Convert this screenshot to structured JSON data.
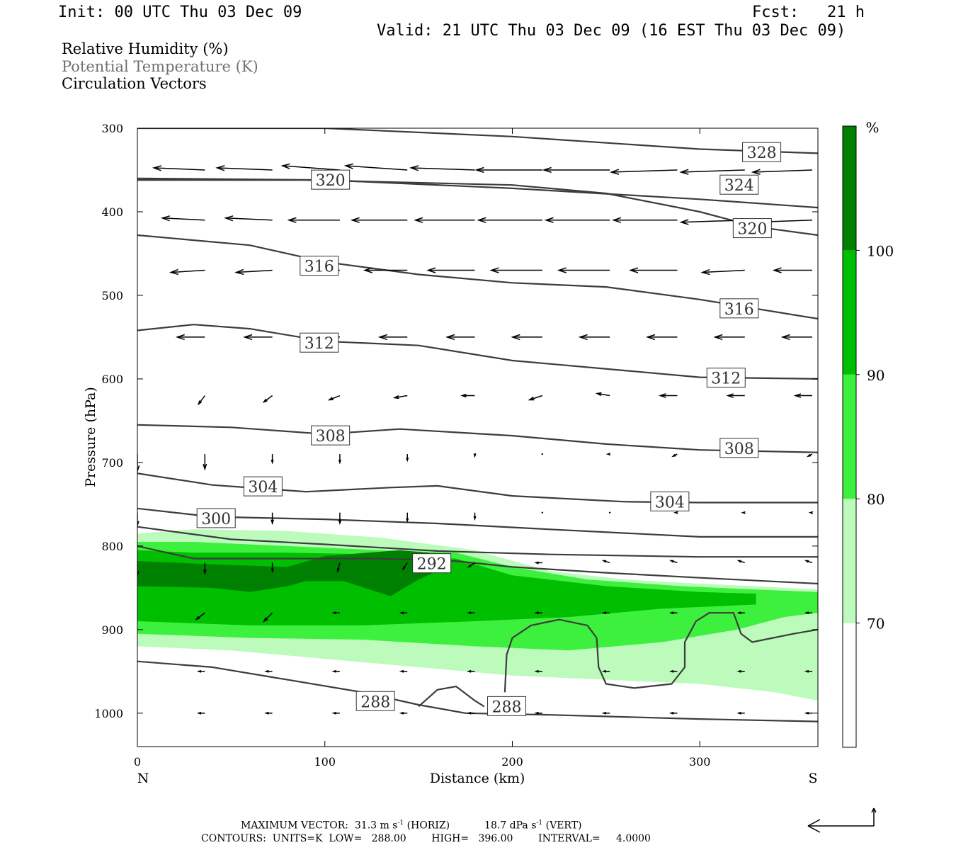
{
  "header": {
    "init": "Init: 00 UTC Thu 03 Dec 09",
    "fcst": "Fcst:   21 h",
    "valid": "Valid: 21 UTC Thu 03 Dec 09 (16 EST Thu 03 Dec 09)"
  },
  "fields": {
    "rh": "Relative Humidity (%)",
    "theta": "Potential Temperature (K)",
    "vectors": "Circulation Vectors"
  },
  "footer": {
    "max_vector_prefix": "MAXIMUM VECTOR:  31.3 m s",
    "max_vector_horiz": "(HORIZ)",
    "max_vector_vert_value": "18.7 dPa s",
    "max_vector_vert": "(VERT)",
    "sup": "-1",
    "contours": "CONTOURS:  UNITS=K  LOW=   288.00        HIGH=   396.00        INTERVAL=     4.0000"
  },
  "colors": {
    "rh_70_80": "#bcfbbc",
    "rh_80_90": "#3ef03e",
    "rh_90_100": "#00be00",
    "rh_100": "#008000",
    "contour": "#3c3c3c",
    "vector": "#000000"
  },
  "chart_data": {
    "type": "cross-section",
    "xlabel": "Distance (km)",
    "ylabel": "Pressure (hPa)",
    "xlim": [
      0,
      363
    ],
    "ylim": [
      1040,
      300
    ],
    "y_scale": "linear",
    "x_ticks": [
      0,
      100,
      200,
      300
    ],
    "y_ticks": [
      300,
      400,
      500,
      600,
      700,
      800,
      900,
      1000
    ],
    "x_end_labels": {
      "left": "N",
      "right": "S"
    },
    "colorbar": {
      "unit": "%",
      "levels": [
        70,
        80,
        90,
        100
      ],
      "colors": [
        "#ffffff",
        "#bcfbbc",
        "#3ef03e",
        "#00be00",
        "#008000"
      ]
    },
    "rh_bands": [
      {
        "level": "70-80",
        "color": "#bcfbbc",
        "top": [
          [
            0,
            785
          ],
          [
            30,
            780
          ],
          [
            80,
            782
          ],
          [
            130,
            790
          ],
          [
            180,
            805
          ],
          [
            220,
            830
          ],
          [
            260,
            840
          ],
          [
            300,
            845
          ],
          [
            330,
            848
          ],
          [
            363,
            852
          ]
        ],
        "bottom": [
          [
            0,
            920
          ],
          [
            50,
            925
          ],
          [
            100,
            935
          ],
          [
            150,
            945
          ],
          [
            200,
            955
          ],
          [
            250,
            960
          ],
          [
            300,
            965
          ],
          [
            340,
            975
          ],
          [
            363,
            985
          ]
        ]
      },
      {
        "level": "80-90",
        "color": "#3ef03e",
        "top": [
          [
            0,
            795
          ],
          [
            30,
            795
          ],
          [
            80,
            800
          ],
          [
            130,
            805
          ],
          [
            170,
            808
          ],
          [
            200,
            825
          ],
          [
            240,
            840
          ],
          [
            290,
            848
          ],
          [
            330,
            852
          ],
          [
            363,
            855
          ]
        ],
        "bottom": [
          [
            0,
            905
          ],
          [
            60,
            910
          ],
          [
            120,
            912
          ],
          [
            180,
            920
          ],
          [
            230,
            925
          ],
          [
            280,
            915
          ],
          [
            320,
            900
          ],
          [
            345,
            885
          ],
          [
            363,
            880
          ]
        ]
      },
      {
        "level": "90-100",
        "color": "#00be00",
        "top": [
          [
            0,
            805
          ],
          [
            30,
            808
          ],
          [
            80,
            808
          ],
          [
            130,
            810
          ],
          [
            170,
            815
          ],
          [
            200,
            835
          ],
          [
            250,
            848
          ],
          [
            300,
            855
          ],
          [
            330,
            857
          ]
        ],
        "bottom": [
          [
            0,
            890
          ],
          [
            60,
            895
          ],
          [
            120,
            895
          ],
          [
            180,
            890
          ],
          [
            230,
            885
          ],
          [
            280,
            875
          ],
          [
            310,
            872
          ],
          [
            330,
            870
          ]
        ]
      },
      {
        "level": ">100",
        "color": "#008000",
        "top": [
          [
            0,
            818
          ],
          [
            40,
            822
          ],
          [
            80,
            825
          ],
          [
            100,
            812
          ],
          [
            140,
            805
          ],
          [
            155,
            808
          ],
          [
            165,
            820
          ]
        ],
        "bottom": [
          [
            0,
            848
          ],
          [
            40,
            850
          ],
          [
            60,
            855
          ],
          [
            80,
            848
          ],
          [
            90,
            842
          ],
          [
            110,
            842
          ],
          [
            135,
            860
          ],
          [
            150,
            840
          ],
          [
            165,
            825
          ]
        ]
      }
    ],
    "contour_labels": [
      {
        "value": "328",
        "x": 333,
        "p": 329
      },
      {
        "value": "324",
        "x": 321,
        "p": 368
      },
      {
        "value": "320",
        "x": 103,
        "p": 362
      },
      {
        "value": "320",
        "x": 328,
        "p": 420
      },
      {
        "value": "316",
        "x": 97,
        "p": 465
      },
      {
        "value": "316",
        "x": 321,
        "p": 516
      },
      {
        "value": "312",
        "x": 97,
        "p": 557
      },
      {
        "value": "312",
        "x": 314,
        "p": 599
      },
      {
        "value": "308",
        "x": 103,
        "p": 668
      },
      {
        "value": "308",
        "x": 321,
        "p": 683
      },
      {
        "value": "304",
        "x": 67,
        "p": 729
      },
      {
        "value": "304",
        "x": 284,
        "p": 747
      },
      {
        "value": "300",
        "x": 42,
        "p": 767
      },
      {
        "value": "292",
        "x": 157,
        "p": 821
      },
      {
        "value": "288",
        "x": 127,
        "p": 986
      },
      {
        "value": "288",
        "x": 197,
        "p": 992
      }
    ],
    "theta_contours": [
      {
        "value": 328,
        "points": [
          [
            0,
            300
          ],
          [
            100,
            300
          ],
          [
            200,
            310
          ],
          [
            300,
            325
          ],
          [
            363,
            330
          ]
        ]
      },
      {
        "value": 324,
        "points": [
          [
            0,
            360
          ],
          [
            100,
            362
          ],
          [
            200,
            372
          ],
          [
            300,
            385
          ],
          [
            363,
            395
          ]
        ]
      },
      {
        "value": 320,
        "points": [
          [
            0,
            362
          ],
          [
            90,
            362
          ],
          [
            200,
            368
          ],
          [
            250,
            378
          ],
          [
            300,
            400
          ],
          [
            330,
            418
          ],
          [
            363,
            428
          ]
        ]
      },
      {
        "value": 316,
        "points": [
          [
            0,
            428
          ],
          [
            60,
            440
          ],
          [
            100,
            460
          ],
          [
            150,
            475
          ],
          [
            200,
            485
          ],
          [
            250,
            490
          ],
          [
            300,
            505
          ],
          [
            363,
            528
          ]
        ]
      },
      {
        "value": 312,
        "points": [
          [
            0,
            542
          ],
          [
            30,
            535
          ],
          [
            60,
            540
          ],
          [
            100,
            555
          ],
          [
            150,
            560
          ],
          [
            200,
            578
          ],
          [
            260,
            590
          ],
          [
            300,
            598
          ],
          [
            363,
            600
          ]
        ]
      },
      {
        "value": 308,
        "points": [
          [
            0,
            655
          ],
          [
            50,
            658
          ],
          [
            100,
            666
          ],
          [
            140,
            660
          ],
          [
            200,
            668
          ],
          [
            250,
            678
          ],
          [
            300,
            685
          ],
          [
            363,
            688
          ]
        ]
      },
      {
        "value": 304,
        "points": [
          [
            0,
            713
          ],
          [
            40,
            727
          ],
          [
            90,
            735
          ],
          [
            135,
            730
          ],
          [
            160,
            728
          ],
          [
            200,
            740
          ],
          [
            260,
            747
          ],
          [
            300,
            748
          ],
          [
            363,
            748
          ]
        ]
      },
      {
        "value": 300,
        "points": [
          [
            0,
            755
          ],
          [
            40,
            765
          ],
          [
            100,
            768
          ],
          [
            160,
            773
          ],
          [
            220,
            780
          ],
          [
            300,
            789
          ],
          [
            363,
            789
          ]
        ]
      },
      {
        "value": 296,
        "points": [
          [
            0,
            777
          ],
          [
            50,
            792
          ],
          [
            100,
            798
          ],
          [
            160,
            806
          ],
          [
            220,
            810
          ],
          [
            300,
            813
          ],
          [
            363,
            813
          ]
        ]
      },
      {
        "value": 292,
        "points": [
          [
            0,
            800
          ],
          [
            30,
            815
          ],
          [
            80,
            815
          ],
          [
            130,
            815
          ],
          [
            170,
            818
          ],
          [
            200,
            825
          ],
          [
            250,
            832
          ],
          [
            300,
            838
          ],
          [
            363,
            845
          ]
        ]
      },
      {
        "value": 288,
        "points": [
          [
            0,
            938
          ],
          [
            40,
            945
          ],
          [
            80,
            960
          ],
          [
            120,
            975
          ],
          [
            150,
            990
          ],
          [
            175,
            1000
          ],
          [
            220,
            1002
          ],
          [
            300,
            1007
          ],
          [
            363,
            1010
          ]
        ]
      },
      {
        "value": 290,
        "points": [
          [
            196,
            975
          ],
          [
            197,
            930
          ],
          [
            200,
            910
          ],
          [
            210,
            895
          ],
          [
            225,
            888
          ],
          [
            240,
            895
          ],
          [
            245,
            910
          ],
          [
            246,
            945
          ],
          [
            250,
            965
          ],
          [
            265,
            970
          ],
          [
            285,
            965
          ],
          [
            292,
            945
          ],
          [
            292,
            915
          ],
          [
            298,
            890
          ],
          [
            305,
            880
          ],
          [
            318,
            880
          ],
          [
            322,
            905
          ],
          [
            328,
            915
          ],
          [
            350,
            905
          ],
          [
            363,
            900
          ]
        ]
      },
      {
        "value": 289,
        "points": [
          [
            150,
            992
          ],
          [
            160,
            972
          ],
          [
            170,
            968
          ],
          [
            180,
            985
          ],
          [
            185,
            992
          ]
        ]
      }
    ],
    "vectors": {
      "x": [
        0,
        36,
        72,
        108,
        144,
        180,
        216,
        252,
        288,
        324,
        360
      ],
      "levels": [
        {
          "p": 350,
          "u": [
            -22,
            -24,
            -26,
            -27,
            -29,
            -30,
            -31,
            -31,
            -31,
            -30,
            -28
          ],
          "w": [
            0,
            1,
            1,
            2,
            2,
            1,
            0,
            0,
            -1,
            -1,
            -1
          ]
        },
        {
          "p": 410,
          "u": [
            -18,
            -20,
            -22,
            -24,
            -26,
            -28,
            -30,
            -30,
            -30,
            -30,
            -28
          ],
          "w": [
            1,
            1,
            1,
            0,
            0,
            0,
            0,
            0,
            0,
            -1,
            -1
          ]
        },
        {
          "p": 470,
          "u": [
            -16,
            -16,
            -17,
            -18,
            -20,
            -22,
            -24,
            -24,
            -22,
            -20,
            -18
          ],
          "w": [
            -2,
            -1,
            -1,
            0,
            0,
            0,
            0,
            0,
            0,
            -1,
            0
          ]
        },
        {
          "p": 550,
          "u": [
            -12,
            -13,
            -13,
            -13,
            -13,
            -13,
            -14,
            -14,
            -14,
            -14,
            -14
          ],
          "w": [
            -3,
            0,
            0,
            1,
            0,
            0,
            0,
            0,
            0,
            0,
            0
          ]
        },
        {
          "p": 620,
          "u": [
            -2,
            -3,
            -4,
            -5,
            -6,
            -6,
            -6,
            -6,
            -8,
            -8,
            -8
          ],
          "w": [
            -7,
            -4,
            -3,
            -2,
            -1,
            0,
            -2,
            1,
            0,
            0,
            0
          ]
        },
        {
          "p": 690,
          "u": [
            0,
            0,
            0,
            0,
            0,
            0,
            0,
            -1,
            -2,
            -2,
            -2
          ],
          "w": [
            -8,
            -7,
            -4,
            -4,
            -3,
            -1,
            0,
            0,
            -1,
            -1,
            -1
          ]
        },
        {
          "p": 760,
          "u": [
            0,
            0,
            0,
            0,
            0,
            0,
            0,
            0,
            -1,
            -1,
            -1
          ],
          "w": [
            -6,
            -5,
            -5,
            -5,
            -4,
            -3,
            0,
            0,
            0,
            0,
            0
          ]
        },
        {
          "p": 820,
          "u": [
            0,
            0,
            0,
            -1,
            -2,
            -3,
            -3,
            -3,
            -3,
            -3,
            -3
          ],
          "w": [
            -6,
            -5,
            -4,
            -4,
            -3,
            -2,
            0,
            1,
            1,
            1,
            1
          ]
        },
        {
          "p": 880,
          "u": [
            -4,
            -4,
            -4,
            -3,
            -3,
            -3,
            -3,
            -3,
            -3,
            -3,
            -3
          ],
          "w": [
            -2,
            -3,
            -4,
            0,
            0,
            0,
            0,
            0,
            0,
            0,
            0
          ]
        },
        {
          "p": 950,
          "u": [
            -3,
            -3,
            -3,
            -3,
            -3,
            -3,
            -3,
            -3,
            -3,
            -3,
            -3
          ],
          "w": [
            0,
            0,
            0,
            0,
            0,
            0,
            0,
            0,
            0,
            0,
            0
          ]
        },
        {
          "p": 1000,
          "u": [
            -3,
            -3,
            -3,
            -3,
            -3,
            -3,
            -3,
            -3,
            -3,
            -3,
            -3
          ],
          "w": [
            0,
            0,
            0,
            0,
            0,
            0,
            0,
            0,
            0,
            0,
            0
          ]
        }
      ]
    }
  }
}
